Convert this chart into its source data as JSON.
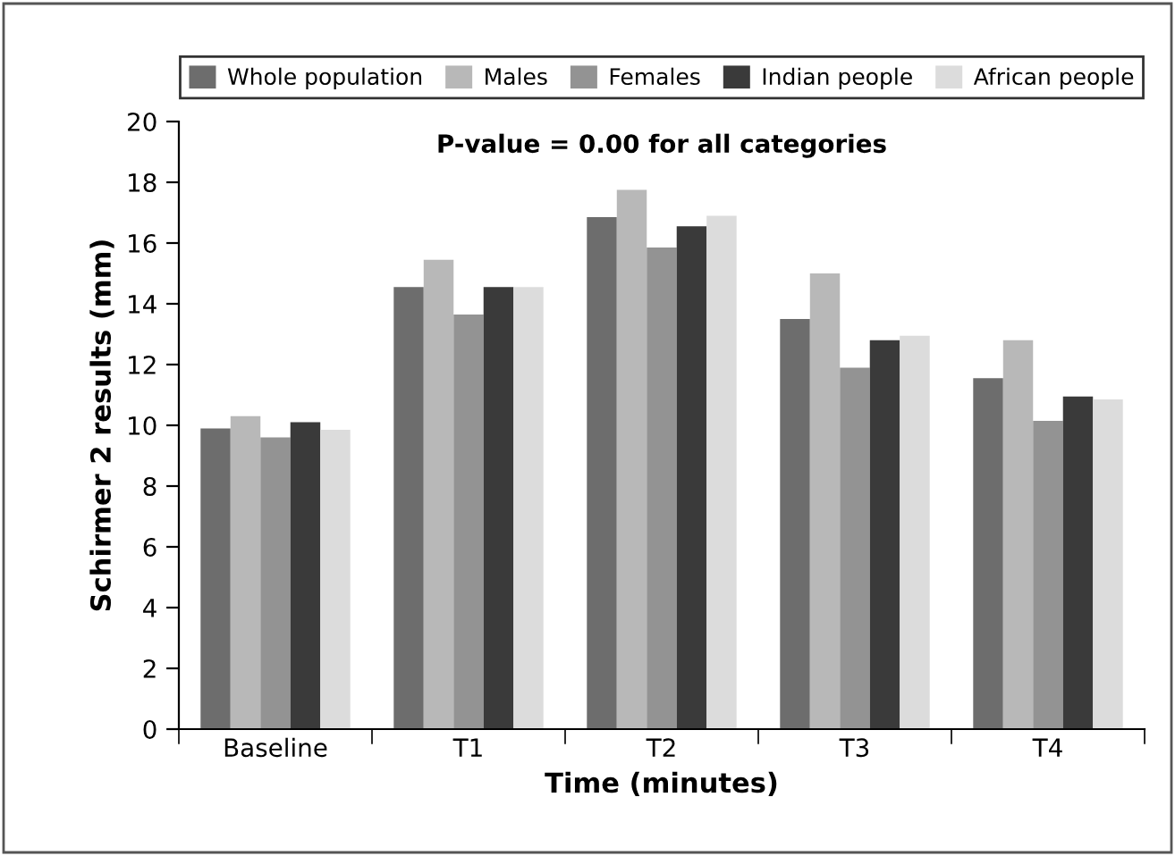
{
  "chart_data": {
    "type": "bar",
    "xlabel": "Time (minutes)",
    "ylabel": "Schirmer 2 results (mm)",
    "annotations": [
      "P-value = 0.00 for all categories"
    ],
    "categories": [
      "Baseline",
      "T1",
      "T2",
      "T3",
      "T4"
    ],
    "series": [
      {
        "name": "Whole population",
        "color": "#6d6d6d",
        "values": [
          9.9,
          14.55,
          16.85,
          13.5,
          11.55
        ]
      },
      {
        "name": "Males",
        "color": "#b8b8b8",
        "values": [
          10.3,
          15.45,
          17.75,
          15.0,
          12.8
        ]
      },
      {
        "name": "Females",
        "color": "#939393",
        "values": [
          9.6,
          13.65,
          15.85,
          11.9,
          10.15
        ]
      },
      {
        "name": "Indian people",
        "color": "#3a3a3a",
        "values": [
          10.1,
          14.55,
          16.55,
          12.8,
          10.95
        ]
      },
      {
        "name": "African people",
        "color": "#dcdcdc",
        "values": [
          9.85,
          14.55,
          16.9,
          12.95,
          10.85
        ]
      }
    ],
    "ylim": [
      0,
      20
    ],
    "yticks": [
      0,
      2,
      4,
      6,
      8,
      10,
      12,
      14,
      16,
      18,
      20
    ],
    "grid": false,
    "legend": "top"
  }
}
